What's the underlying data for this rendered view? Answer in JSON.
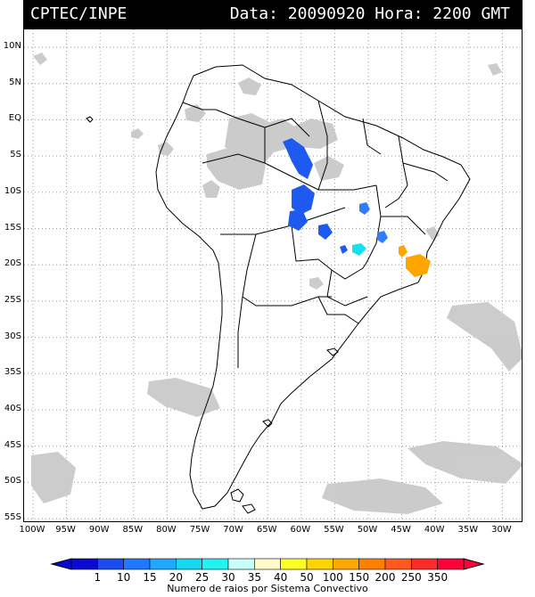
{
  "header": {
    "left": "CPTEC/INPE",
    "right": "Data: 20090920 Hora: 2200 GMT"
  },
  "map": {
    "lat_labels": [
      "10N",
      "5N",
      "EQ",
      "5S",
      "10S",
      "15S",
      "20S",
      "25S",
      "30S",
      "35S",
      "40S",
      "45S",
      "50S",
      "55S"
    ],
    "lon_labels": [
      "100W",
      "95W",
      "90W",
      "85W",
      "80W",
      "75W",
      "70W",
      "65W",
      "60W",
      "55W",
      "50W",
      "45W",
      "40W",
      "35W",
      "30W"
    ],
    "colors": {
      "cloud": "#c8c8c8",
      "coast": "#000000",
      "grid": "#9a9a9a",
      "blue_dark": "#1e5af0",
      "blue_med": "#2f7cff",
      "cyan": "#15e0f0",
      "orange": "#ffa500",
      "yellow_orange": "#ffc000"
    }
  },
  "colorbar": {
    "labels": [
      "1",
      "10",
      "15",
      "20",
      "25",
      "30",
      "35",
      "40",
      "50",
      "100",
      "150",
      "200",
      "250",
      "350"
    ],
    "colors": [
      "#0a0ad2",
      "#1c4cf0",
      "#1f78ff",
      "#20a8ff",
      "#14d8f0",
      "#22f2f2",
      "#c8fffa",
      "#fffac8",
      "#ffff28",
      "#ffd400",
      "#ffa800",
      "#ff8000",
      "#ff5a1e",
      "#ff2a2a",
      "#ff003c"
    ],
    "caption": "Numero de raios por Sistema Convectivo"
  }
}
